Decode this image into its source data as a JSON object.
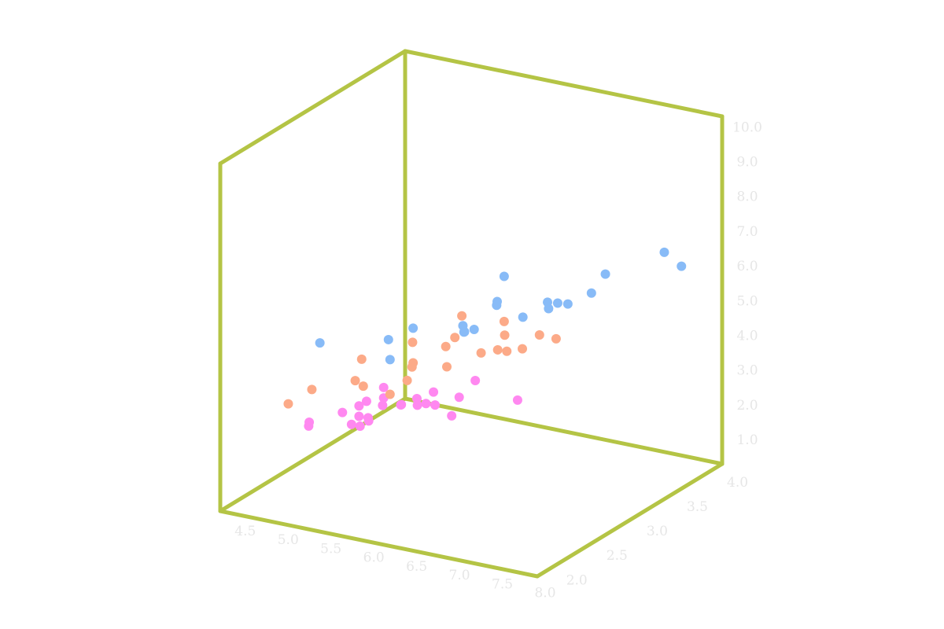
{
  "chart_data": {
    "type": "scatter3d",
    "xlim": [
      4.3,
      8.0
    ],
    "ylim": [
      1.9,
      4.2
    ],
    "zlim": [
      0.2,
      10.2
    ],
    "xticks": [
      4.5,
      {
        "value": 5,
        "label": "5.0"
      },
      5.5,
      {
        "value": 6,
        "label": "6.0"
      },
      6.5,
      {
        "value": 7,
        "label": "7.0"
      },
      7.5,
      {
        "value": 8,
        "label": "8.0"
      }
    ],
    "yticks": [
      {
        "value": 2,
        "label": "2.0"
      },
      2.5,
      {
        "value": 3,
        "label": "3.0"
      },
      3.5,
      {
        "value": 4,
        "label": "4.0"
      }
    ],
    "zticks": [
      {
        "value": 1,
        "label": "1.0"
      },
      {
        "value": 2,
        "label": "2.0"
      },
      {
        "value": 3,
        "label": "3.0"
      },
      {
        "value": 4,
        "label": "4.0"
      },
      {
        "value": 5,
        "label": "5.0"
      },
      {
        "value": 6,
        "label": "6.0"
      },
      {
        "value": 7,
        "label": "7.0"
      },
      {
        "value": 8,
        "label": "8.0"
      },
      {
        "value": 9,
        "label": "9.0"
      },
      {
        "value": 10,
        "label": "10.0"
      }
    ],
    "box_color": "#b4c445",
    "series": [
      {
        "color": "#ff88f0",
        "x": [
          5.1,
          4.9,
          4.7,
          4.6,
          5.0,
          5.4,
          4.6,
          5.0,
          4.4,
          4.9,
          5.4,
          4.8,
          4.8,
          4.3,
          5.8,
          5.4,
          5.1,
          4.6,
          5.1,
          4.8,
          5.0,
          5.2,
          4.7,
          5.5
        ],
        "y": [
          3.5,
          3.0,
          3.2,
          3.1,
          3.6,
          3.9,
          3.4,
          3.4,
          2.9,
          3.1,
          3.7,
          3.4,
          3.0,
          3.0,
          4.0,
          3.4,
          3.7,
          3.6,
          3.3,
          3.4,
          3.0,
          3.5,
          3.2,
          3.5
        ],
        "z": [
          1.4,
          1.4,
          1.3,
          1.5,
          1.4,
          1.7,
          1.4,
          1.5,
          1.4,
          1.5,
          1.5,
          1.6,
          1.4,
          1.1,
          1.2,
          1.7,
          1.5,
          1.0,
          1.7,
          1.9,
          1.6,
          1.5,
          1.6,
          1.3
        ]
      },
      {
        "color": "#fcaa88",
        "x": [
          7.0,
          6.4,
          6.9,
          5.5,
          6.5,
          5.7,
          6.3,
          4.9,
          6.6,
          5.2,
          5.0,
          5.9,
          6.0,
          6.1,
          5.6,
          6.7,
          5.8,
          6.2,
          5.9,
          6.1,
          6.8,
          5.5
        ],
        "y": [
          3.2,
          3.2,
          3.1,
          2.3,
          2.8,
          2.8,
          3.3,
          2.4,
          2.9,
          2.7,
          2.0,
          3.0,
          2.2,
          2.9,
          2.9,
          3.1,
          2.7,
          2.2,
          3.2,
          2.8,
          2.8,
          2.4
        ],
        "z": [
          4.7,
          4.5,
          4.9,
          4.0,
          4.6,
          4.5,
          4.7,
          3.3,
          4.6,
          3.9,
          3.5,
          4.2,
          4.0,
          4.7,
          3.6,
          4.4,
          4.1,
          4.5,
          4.8,
          4.0,
          4.8,
          3.7
        ]
      },
      {
        "color": "#88bbf7",
        "x": [
          6.3,
          5.8,
          7.1,
          6.5,
          7.6,
          4.9,
          7.3,
          6.7,
          7.2,
          6.4,
          6.8,
          5.7,
          7.7,
          7.7,
          6.0,
          6.9,
          7.9,
          6.3,
          6.1,
          6.4
        ],
        "y": [
          3.3,
          2.7,
          3.0,
          3.0,
          3.0,
          2.5,
          2.9,
          2.5,
          3.6,
          2.7,
          3.0,
          2.5,
          3.8,
          2.6,
          2.2,
          3.2,
          3.8,
          2.8,
          3.0,
          3.1
        ],
        "z": [
          6.0,
          5.1,
          5.9,
          5.8,
          6.6,
          4.5,
          6.3,
          5.8,
          6.1,
          5.3,
          5.5,
          5.0,
          6.7,
          6.9,
          5.0,
          5.7,
          6.4,
          5.1,
          4.9,
          5.5
        ]
      }
    ]
  }
}
